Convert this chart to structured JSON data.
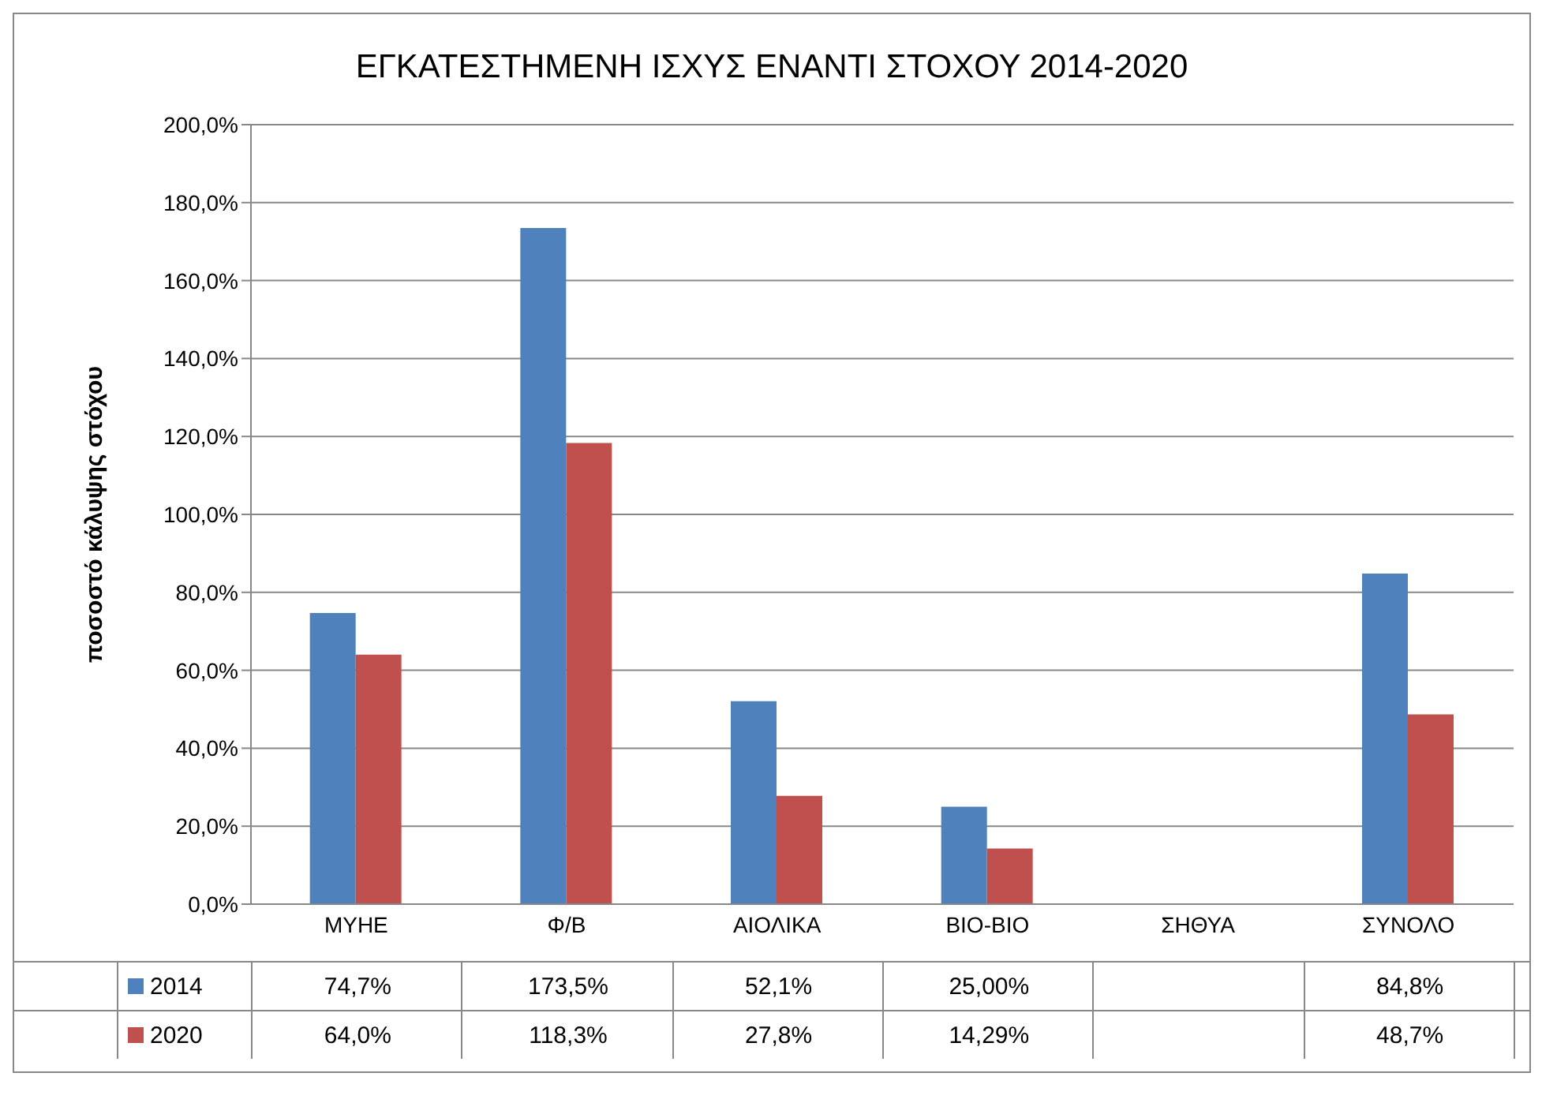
{
  "chart_data": {
    "type": "bar",
    "title": "ΕΓΚΑΤΕΣΤΗΜΕΝΗ ΙΣΧΥΣ ΕΝΑΝΤΙ ΣΤΟΧΟΥ 2014-2020",
    "ylabel": "ποσοστό κάλυψης στόχου",
    "categories": [
      "ΜΥΗΕ",
      "Φ/Β",
      "ΑΙΟΛΙΚΑ",
      "ΒΙΟ-ΒΙΟ",
      "ΣΗΘΥΑ",
      "ΣΥΝΟΛΟ"
    ],
    "series": [
      {
        "name": "2014",
        "color": "#4f81bd",
        "values": [
          74.7,
          173.5,
          52.1,
          25.0,
          null,
          84.8
        ],
        "value_labels": [
          "74,7%",
          "173,5%",
          "52,1%",
          "25,00%",
          null,
          "84,8%"
        ]
      },
      {
        "name": "2020",
        "color": "#c0504d",
        "values": [
          64.0,
          118.3,
          27.8,
          14.29,
          null,
          48.7
        ],
        "value_labels": [
          "64,0%",
          "118,3%",
          "27,8%",
          "14,29%",
          null,
          "48,7%"
        ]
      }
    ],
    "ylim": [
      0,
      200
    ],
    "yticks": [
      {
        "value": 0,
        "label": "0,0%"
      },
      {
        "value": 20,
        "label": "20,0%"
      },
      {
        "value": 40,
        "label": "40,0%"
      },
      {
        "value": 60,
        "label": "60,0%"
      },
      {
        "value": 80,
        "label": "80,0%"
      },
      {
        "value": 100,
        "label": "100,0%"
      },
      {
        "value": 120,
        "label": "120,0%"
      },
      {
        "value": 140,
        "label": "140,0%"
      },
      {
        "value": 160,
        "label": "160,0%"
      },
      {
        "value": 180,
        "label": "180,0%"
      },
      {
        "value": 200,
        "label": "200,0%"
      }
    ],
    "grid": "y",
    "legend": "bottom"
  }
}
